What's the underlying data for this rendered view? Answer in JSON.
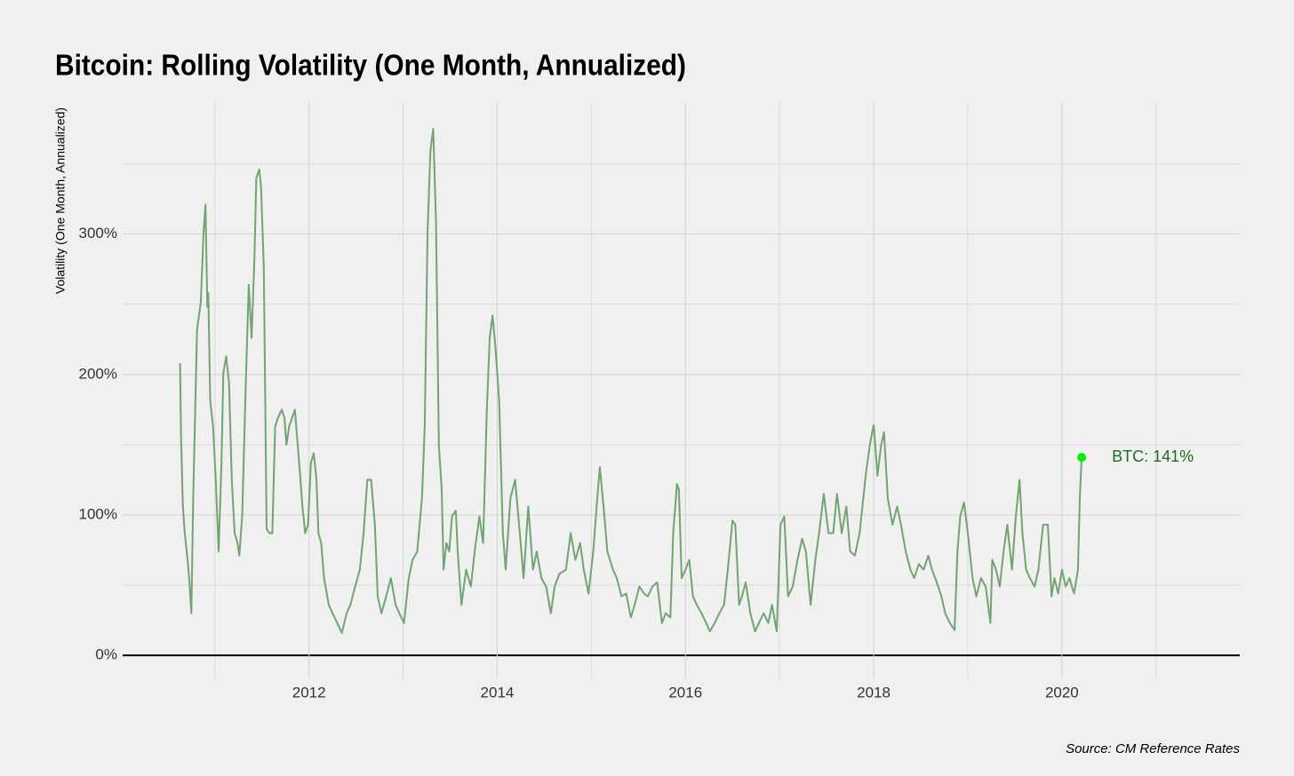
{
  "chart_data": {
    "type": "line",
    "title": "Bitcoin: Rolling Volatility (One Month, Annualized)",
    "y_label": "Volatility (One Month, Annualized)",
    "source": "Source: CM Reference Rates",
    "color": "#72a372",
    "grid": true,
    "xlim": [
      2010.02,
      2021.89
    ],
    "xticks": [
      2012,
      2014,
      2016,
      2018,
      2020
    ],
    "xminor": [
      2011,
      2013,
      2015,
      2017,
      2019,
      2021
    ],
    "ylim": [
      -17,
      394
    ],
    "yticks": [
      {
        "value": 0,
        "label": "0%"
      },
      {
        "value": 100,
        "label": "100%"
      },
      {
        "value": 200,
        "label": "200%"
      },
      {
        "value": 300,
        "label": "300%"
      }
    ],
    "yminor": [
      50,
      150,
      250,
      350
    ],
    "annotation": {
      "text": "BTC: 141%",
      "x": 2020.21,
      "y": 141,
      "color": "#00ee00",
      "text_color": "#1f6b1f"
    },
    "x": [
      2010.63,
      2010.64,
      2010.66,
      2010.68,
      2010.71,
      2010.73,
      2010.75,
      2010.77,
      2010.81,
      2010.85,
      2010.88,
      2010.9,
      2010.92,
      2010.93,
      2010.95,
      2010.98,
      2011.01,
      2011.04,
      2011.07,
      2011.09,
      2011.12,
      2011.15,
      2011.18,
      2011.21,
      2011.24,
      2011.26,
      2011.29,
      2011.33,
      2011.36,
      2011.39,
      2011.42,
      2011.44,
      2011.47,
      2011.49,
      2011.52,
      2011.55,
      2011.58,
      2011.61,
      2011.64,
      2011.67,
      2011.71,
      2011.74,
      2011.76,
      2011.79,
      2011.82,
      2011.85,
      2011.88,
      2011.91,
      2011.93,
      2011.96,
      2011.99,
      2012.02,
      2012.05,
      2012.08,
      2012.1,
      2012.13,
      2012.16,
      2012.21,
      2012.25,
      2012.3,
      2012.35,
      2012.4,
      2012.44,
      2012.49,
      2012.54,
      2012.58,
      2012.62,
      2012.66,
      2012.7,
      2012.73,
      2012.77,
      2012.82,
      2012.87,
      2012.92,
      2012.96,
      2013.01,
      2013.06,
      2013.1,
      2013.15,
      2013.2,
      2013.23,
      2013.26,
      2013.29,
      2013.32,
      2013.35,
      2013.38,
      2013.41,
      2013.43,
      2013.46,
      2013.49,
      2013.52,
      2013.56,
      2013.58,
      2013.62,
      2013.67,
      2013.72,
      2013.76,
      2013.81,
      2013.85,
      2013.89,
      2013.92,
      2013.95,
      2013.98,
      2014.02,
      2014.06,
      2014.09,
      2014.14,
      2014.19,
      2014.24,
      2014.28,
      2014.33,
      2014.38,
      2014.42,
      2014.47,
      2014.52,
      2014.57,
      2014.61,
      2014.66,
      2014.73,
      2014.78,
      2014.83,
      2014.88,
      2014.92,
      2014.97,
      2015.02,
      2015.06,
      2015.09,
      2015.13,
      2015.17,
      2015.23,
      2015.27,
      2015.32,
      2015.37,
      2015.42,
      2015.46,
      2015.51,
      2015.56,
      2015.6,
      2015.65,
      2015.7,
      2015.75,
      2015.79,
      2015.84,
      2015.87,
      2015.91,
      2015.93,
      2015.96,
      2016.0,
      2016.04,
      2016.08,
      2016.12,
      2016.17,
      2016.22,
      2016.26,
      2016.31,
      2016.36,
      2016.41,
      2016.45,
      2016.5,
      2016.53,
      2016.57,
      2016.6,
      2016.64,
      2016.69,
      2016.74,
      2016.78,
      2016.83,
      2016.88,
      2016.92,
      2016.97,
      2017.01,
      2017.05,
      2017.09,
      2017.14,
      2017.19,
      2017.24,
      2017.28,
      2017.33,
      2017.38,
      2017.42,
      2017.47,
      2017.52,
      2017.57,
      2017.61,
      2017.66,
      2017.71,
      2017.75,
      2017.8,
      2017.85,
      2017.89,
      2017.92,
      2017.96,
      2018.0,
      2018.04,
      2018.08,
      2018.11,
      2018.15,
      2018.2,
      2018.25,
      2018.29,
      2018.34,
      2018.39,
      2018.43,
      2018.48,
      2018.53,
      2018.58,
      2018.62,
      2018.67,
      2018.72,
      2018.76,
      2018.81,
      2018.86,
      2018.89,
      2018.92,
      2018.96,
      2019.0,
      2019.05,
      2019.09,
      2019.14,
      2019.19,
      2019.24,
      2019.26,
      2019.3,
      2019.34,
      2019.38,
      2019.42,
      2019.47,
      2019.51,
      2019.55,
      2019.58,
      2019.62,
      2019.66,
      2019.71,
      2019.75,
      2019.8,
      2019.85,
      2019.89,
      2019.92,
      2019.96,
      2020.0,
      2020.04,
      2020.08,
      2020.13,
      2020.17,
      2020.19,
      2020.21
    ],
    "values": [
      208,
      156,
      106,
      87,
      68,
      52,
      30,
      112,
      232,
      251,
      302,
      321,
      248,
      258,
      182,
      163,
      125,
      74,
      137,
      201,
      213,
      194,
      125,
      87,
      80,
      71,
      99,
      197,
      264,
      226,
      283,
      340,
      346,
      334,
      277,
      90,
      87,
      87,
      163,
      169,
      175,
      169,
      150,
      163,
      169,
      175,
      150,
      125,
      106,
      87,
      93,
      137,
      144,
      125,
      87,
      80,
      55,
      36,
      30,
      23,
      16,
      30,
      36,
      49,
      61,
      87,
      125,
      125,
      93,
      42,
      30,
      42,
      55,
      36,
      30,
      23,
      55,
      68,
      74,
      112,
      163,
      302,
      359,
      375,
      308,
      150,
      118,
      61,
      80,
      74,
      99,
      103,
      74,
      36,
      61,
      49,
      74,
      99,
      80,
      175,
      226,
      242,
      220,
      182,
      87,
      61,
      112,
      125,
      87,
      55,
      106,
      61,
      74,
      55,
      49,
      30,
      49,
      58,
      61,
      87,
      68,
      80,
      61,
      44,
      74,
      109,
      134,
      106,
      74,
      61,
      55,
      42,
      44,
      27,
      36,
      49,
      44,
      42,
      49,
      52,
      23,
      30,
      27,
      87,
      122,
      118,
      55,
      61,
      68,
      42,
      36,
      30,
      23,
      17,
      23,
      30,
      36,
      61,
      96,
      93,
      36,
      42,
      52,
      30,
      17,
      23,
      30,
      23,
      36,
      17,
      93,
      99,
      42,
      49,
      68,
      83,
      74,
      36,
      68,
      87,
      115,
      87,
      87,
      115,
      87,
      106,
      74,
      71,
      87,
      112,
      131,
      150,
      164,
      128,
      150,
      159,
      112,
      93,
      106,
      93,
      74,
      61,
      55,
      65,
      61,
      71,
      61,
      52,
      42,
      30,
      23,
      18,
      74,
      99,
      109,
      87,
      55,
      42,
      55,
      49,
      23,
      68,
      61,
      49,
      74,
      93,
      61,
      99,
      125,
      87,
      61,
      55,
      49,
      61,
      93,
      93,
      42,
      55,
      44,
      61,
      49,
      55,
      44,
      61,
      112,
      141
    ]
  }
}
